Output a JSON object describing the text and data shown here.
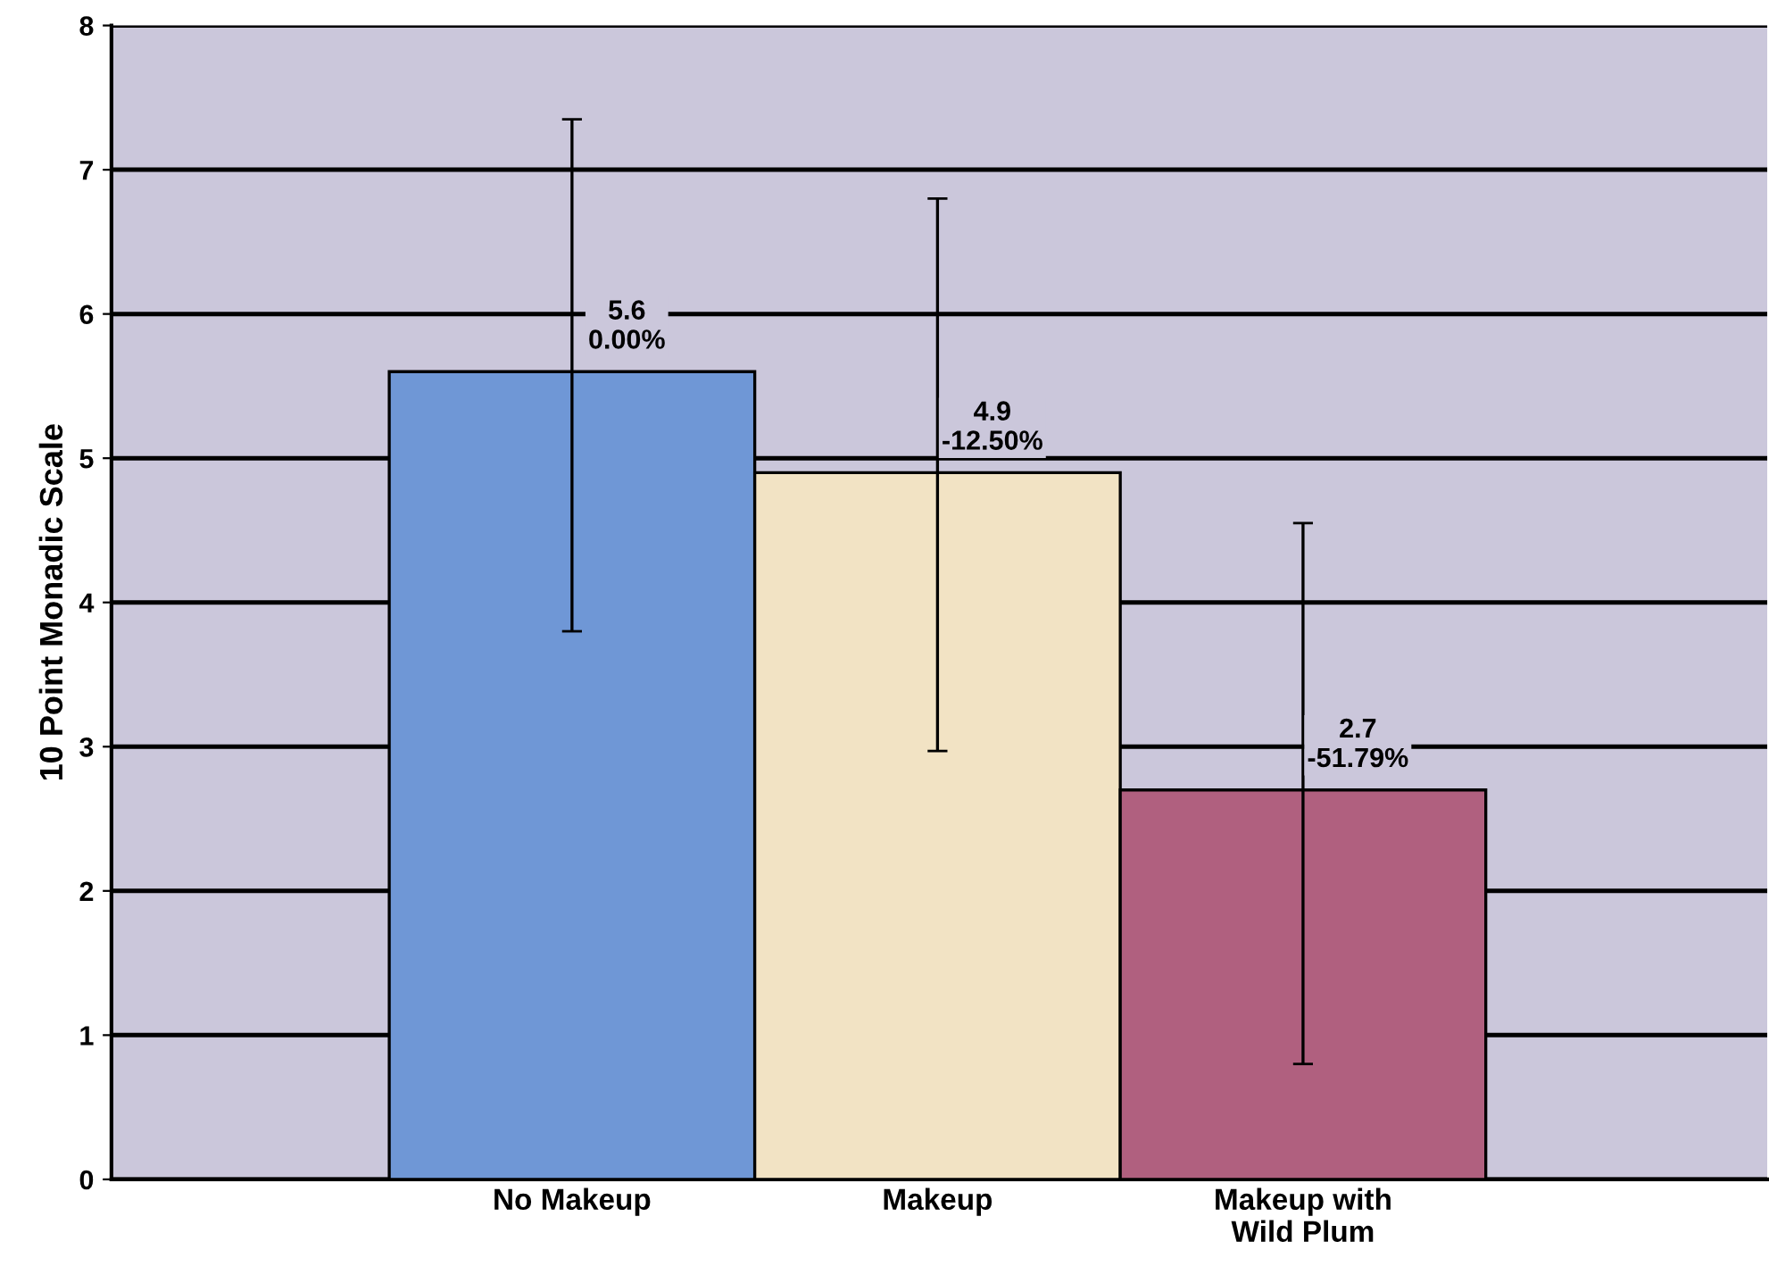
{
  "chart_data": {
    "type": "bar",
    "ylabel": "10 Point Monadic Scale",
    "categories": [
      "No Makeup",
      "Makeup",
      "Makeup with\nWild Plum"
    ],
    "values": [
      5.6,
      4.9,
      2.7
    ],
    "colors": [
      "#6f97d6",
      "#f2e3c4",
      "#b0607f"
    ],
    "errors": [
      [
        3.8,
        7.35
      ],
      [
        2.97,
        6.8
      ],
      [
        0.8,
        4.55
      ]
    ],
    "value_labels": [
      "5.6\n0.00%",
      "4.9\n-12.50%",
      "2.7\n-51.79%"
    ],
    "ylim": [
      0,
      8
    ],
    "yticks": [
      0,
      1,
      2,
      3,
      4,
      5,
      6,
      7,
      8
    ],
    "grid": "y"
  }
}
